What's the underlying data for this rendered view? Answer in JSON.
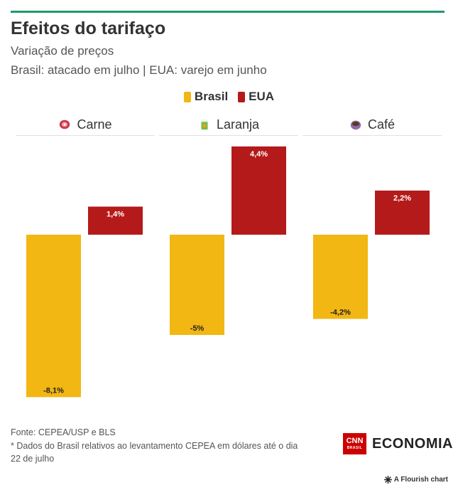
{
  "header": {
    "title": "Efeitos do tarifaço",
    "subtitle1": "Variação de preços",
    "subtitle2": "Brasil: atacado em julho | EUA: varejo em junho"
  },
  "legend": [
    {
      "label": "Brasil",
      "color": "#f2b713"
    },
    {
      "label": "EUA",
      "color": "#b51a1a"
    }
  ],
  "panels": [
    {
      "label": "Carne",
      "icon": "meat-icon"
    },
    {
      "label": "Laranja",
      "icon": "orange-juice-icon"
    },
    {
      "label": "Café",
      "icon": "coffee-icon"
    }
  ],
  "chart_data": {
    "type": "bar",
    "categories": [
      "Carne",
      "Laranja",
      "Café"
    ],
    "series": [
      {
        "name": "Brasil",
        "values": [
          -8.1,
          -5,
          -4.2
        ],
        "labels": [
          "-8,1%",
          "-5%",
          "-4,2%"
        ],
        "color": "#f2b713"
      },
      {
        "name": "EUA",
        "values": [
          1.4,
          4.4,
          2.2
        ],
        "labels": [
          "1,4%",
          "4,4%",
          "2,2%"
        ],
        "color": "#b51a1a"
      }
    ]
  },
  "footer": {
    "source": "Fonte: CEPEA/USP e BLS",
    "note_line1": "* Dados do Brasil relativos ao levantamento CEPEA em dólares até o dia",
    "note_line2": "22 de julho",
    "brand_cnn": "CNN",
    "brand_cnn_sub": "BRASIL",
    "brand_economia": "ECONOMIA",
    "flourish": "A Flourish chart"
  }
}
